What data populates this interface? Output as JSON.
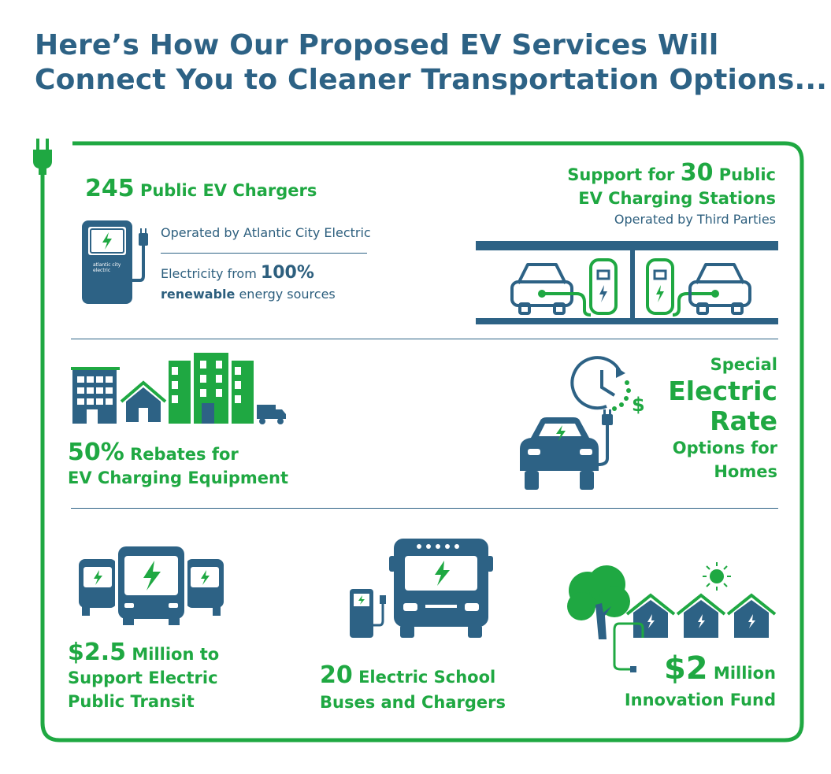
{
  "title": {
    "line1": "Here’s How Our Proposed EV Services Will",
    "line2": "Connect You to Cleaner Transportation Options..."
  },
  "colors": {
    "green": "#1fa842",
    "blue": "#2d6285",
    "white": "#ffffff"
  },
  "chargers": {
    "number": "245",
    "label": "Public EV Chargers",
    "operated": "Operated by Atlantic City Electric",
    "electricity_prefix": "Electricity from",
    "percent": "100%",
    "renewable": "renewable",
    "suffix": "energy sources",
    "logo_line1": "atlantic city",
    "logo_line2": "electric",
    "icon": "ev-charger-icon"
  },
  "stations": {
    "prefix": "Support for",
    "number": "30",
    "label_line1": "Public",
    "label_line2": "EV Charging Stations",
    "sub": "Operated by Third Parties",
    "icon": "charging-station-icon"
  },
  "rebates": {
    "number": "50%",
    "label_line1": "Rebates for",
    "label_line2": "EV Charging Equipment",
    "icon": "buildings-icon"
  },
  "rate": {
    "line1": "Special",
    "line2": "Electric",
    "line3": "Rate",
    "line4": "Options for",
    "line5": "Homes",
    "dollar": "$",
    "icon": "car-clock-icon"
  },
  "transit": {
    "number": "$2.5",
    "line1": "Million to",
    "line2": "Support Electric",
    "line3": "Public Transit",
    "icon": "electric-bus-icon"
  },
  "school": {
    "number": "20",
    "line1": "Electric School",
    "line2": "Buses and Chargers",
    "icon": "school-bus-icon"
  },
  "innovation": {
    "number": "$2",
    "line1": "Million",
    "line2": "Innovation Fund",
    "icon": "solar-homes-icon"
  }
}
